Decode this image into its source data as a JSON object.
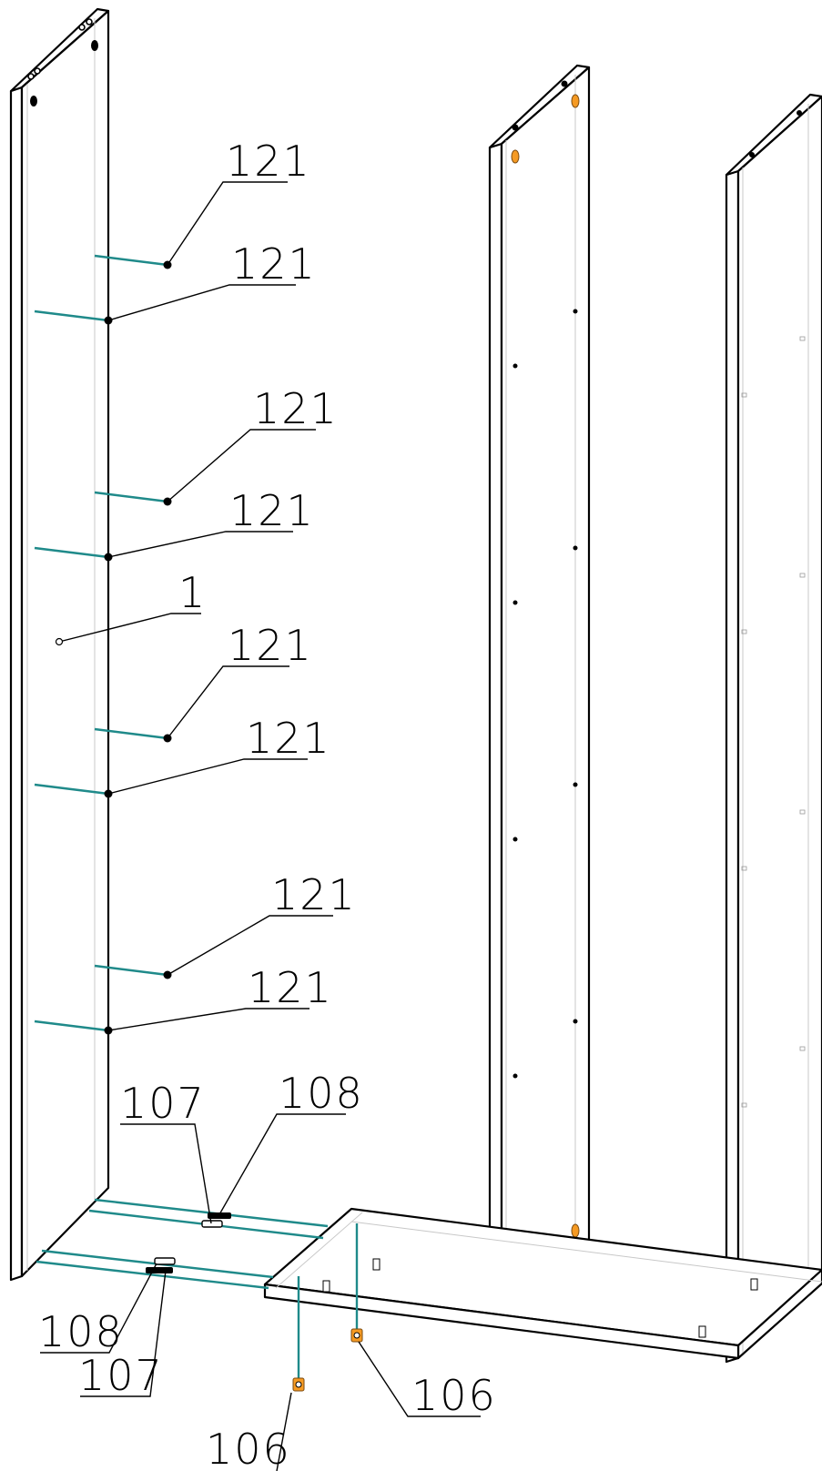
{
  "diagram": {
    "colors": {
      "outline": "#000000",
      "hidden": "#c8c8c8",
      "connector": "#1f8a8a",
      "fitting": "#f59a23"
    },
    "labels": {
      "side_panel": "1",
      "shelf_pin": "121",
      "cam_bolt": "107",
      "cam_lock": "108",
      "leveller": "106"
    }
  }
}
